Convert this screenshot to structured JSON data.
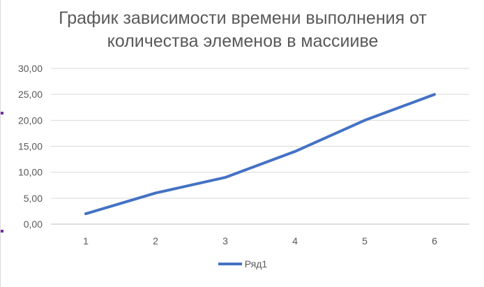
{
  "chart_data": {
    "type": "line",
    "title": "График зависимости времени выполнения от\nколичества элеменов в массииве",
    "xlabel": "",
    "ylabel": "",
    "categories": [
      "1",
      "2",
      "3",
      "4",
      "5",
      "6"
    ],
    "series": [
      {
        "name": "Ряд1",
        "values": [
          2,
          6,
          9,
          14,
          20,
          25
        ],
        "color": "#4472c4"
      }
    ],
    "ylim": [
      0,
      30
    ],
    "y_ticks": [
      "0,00",
      "5,00",
      "10,00",
      "15,00",
      "20,00",
      "25,00",
      "30,00"
    ],
    "grid": true,
    "legend": "bottom"
  }
}
